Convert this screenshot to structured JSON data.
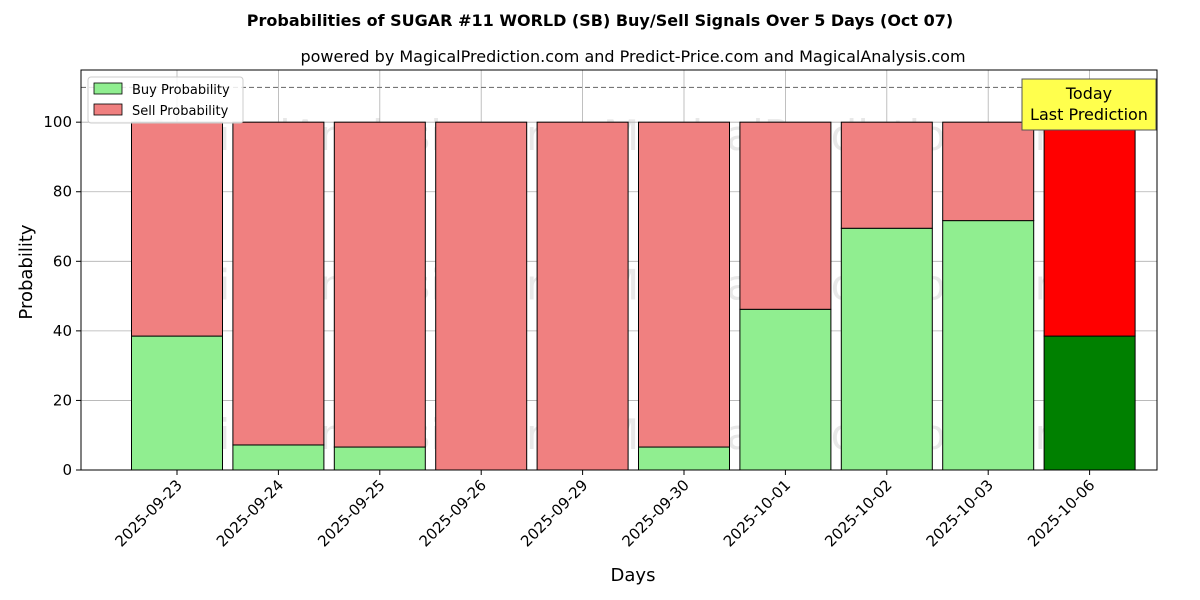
{
  "chart_data": {
    "type": "bar",
    "stacked": true,
    "title": "Probabilities of SUGAR #11 WORLD (SB) Buy/Sell Signals Over 5 Days (Oct 07)",
    "subtitle": "powered by MagicalPrediction.com and Predict-Price.com and MagicalAnalysis.com",
    "xlabel": "Days",
    "ylabel": "Probability",
    "ylim": [
      0,
      115
    ],
    "yticks": [
      0,
      20,
      40,
      60,
      80,
      100
    ],
    "reference_line": 110,
    "grid": true,
    "legend_position": "top-left",
    "categories": [
      "2025-09-23",
      "2025-09-24",
      "2025-09-25",
      "2025-09-26",
      "2025-09-29",
      "2025-09-30",
      "2025-10-01",
      "2025-10-02",
      "2025-10-03",
      "2025-10-06"
    ],
    "series": [
      {
        "name": "Buy Probability",
        "values": [
          38.5,
          7.2,
          6.6,
          0,
          0,
          6.6,
          46.2,
          69.5,
          71.7,
          38.5
        ],
        "color": "#90ee90",
        "highlight_color": "#008000"
      },
      {
        "name": "Sell Probability",
        "values": [
          61.5,
          92.8,
          93.4,
          100,
          100,
          93.4,
          53.8,
          30.5,
          28.3,
          61.5
        ],
        "color": "#f08080",
        "highlight_color": "#ff0000"
      }
    ],
    "highlight_index": 9,
    "annotation": {
      "lines": [
        "Today",
        "Last Prediction"
      ],
      "color": "#ffff4d"
    },
    "watermarks": [
      "MagicalAnalysis.com",
      "MagicalPrediction.com"
    ]
  }
}
